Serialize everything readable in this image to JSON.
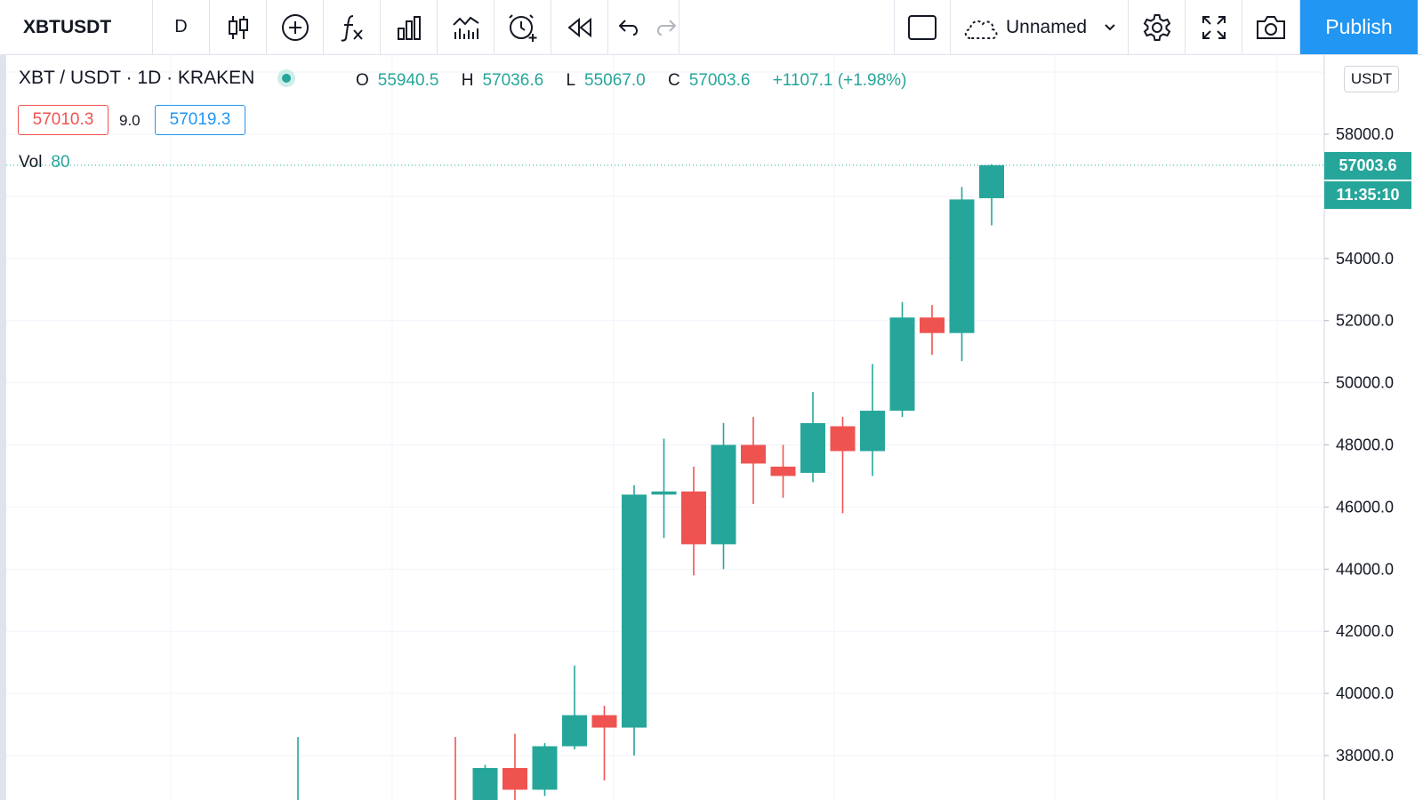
{
  "toolbar": {
    "symbol": "XBTUSDT",
    "interval": "D",
    "layout_name": "Unnamed",
    "publish_label": "Publish",
    "icons": [
      "candles-icon",
      "add-compare-icon",
      "indicators-icon",
      "financials-icon",
      "templates-icon",
      "alert-icon",
      "replay-icon",
      "undo-icon",
      "redo-icon",
      "layout-icon",
      "cloud-icon",
      "chevron-down-icon",
      "settings-icon",
      "fullscreen-icon",
      "camera-icon"
    ]
  },
  "legend": {
    "title": "XBT / USDT · 1D · KRAKEN",
    "open_label": "O",
    "open": "55940.5",
    "high_label": "H",
    "high": "57036.6",
    "low_label": "L",
    "low": "55067.0",
    "close_label": "C",
    "close": "57003.6",
    "change": "+1107.1 (+1.98%)"
  },
  "quotes": {
    "sell": "57010.3",
    "spread": "9.0",
    "buy": "57019.3"
  },
  "volume": {
    "label": "Vol",
    "value": "80"
  },
  "price_scale": {
    "currency": "USDT",
    "last_price": "57003.6",
    "countdown": "11:35:10"
  },
  "colors": {
    "up": "#26a69a",
    "down": "#ef5350",
    "accent": "#2196f3",
    "grid": "#f0f3fa"
  },
  "chart_data": {
    "type": "candlestick",
    "ylim": [
      36300,
      60000
    ],
    "y_ticks": [
      "58000.0",
      "54000.0",
      "52000.0",
      "50000.0",
      "48000.0",
      "46000.0",
      "44000.0",
      "42000.0",
      "40000.0",
      "38000.0"
    ],
    "grid": true,
    "candles": [
      {
        "o": 36500,
        "h": 38600,
        "l": 36200,
        "c": 36300
      },
      {
        "o": 36300,
        "h": 37700,
        "l": 36200,
        "c": 37600
      },
      {
        "o": 37600,
        "h": 38700,
        "l": 36300,
        "c": 36900
      },
      {
        "o": 36900,
        "h": 38400,
        "l": 36700,
        "c": 38300
      },
      {
        "o": 38300,
        "h": 40900,
        "l": 38200,
        "c": 39300
      },
      {
        "o": 39300,
        "h": 39600,
        "l": 37200,
        "c": 38900
      },
      {
        "o": 38900,
        "h": 46700,
        "l": 38000,
        "c": 46400
      },
      {
        "o": 46400,
        "h": 48200,
        "l": 45000,
        "c": 46500
      },
      {
        "o": 46500,
        "h": 47300,
        "l": 43800,
        "c": 44800
      },
      {
        "o": 44800,
        "h": 48700,
        "l": 44000,
        "c": 48000
      },
      {
        "o": 48000,
        "h": 48900,
        "l": 46100,
        "c": 47400
      },
      {
        "o": 47300,
        "h": 48000,
        "l": 46300,
        "c": 47000
      },
      {
        "o": 47100,
        "h": 49700,
        "l": 46800,
        "c": 48700
      },
      {
        "o": 48600,
        "h": 48900,
        "l": 45800,
        "c": 47800
      },
      {
        "o": 47800,
        "h": 50600,
        "l": 47000,
        "c": 49100
      },
      {
        "o": 49100,
        "h": 52600,
        "l": 48900,
        "c": 52100
      },
      {
        "o": 52100,
        "h": 52500,
        "l": 50900,
        "c": 51600
      },
      {
        "o": 51600,
        "h": 56300,
        "l": 50700,
        "c": 55900
      },
      {
        "o": 55940.5,
        "h": 57036.6,
        "l": 55067.0,
        "c": 57003.6
      }
    ]
  }
}
